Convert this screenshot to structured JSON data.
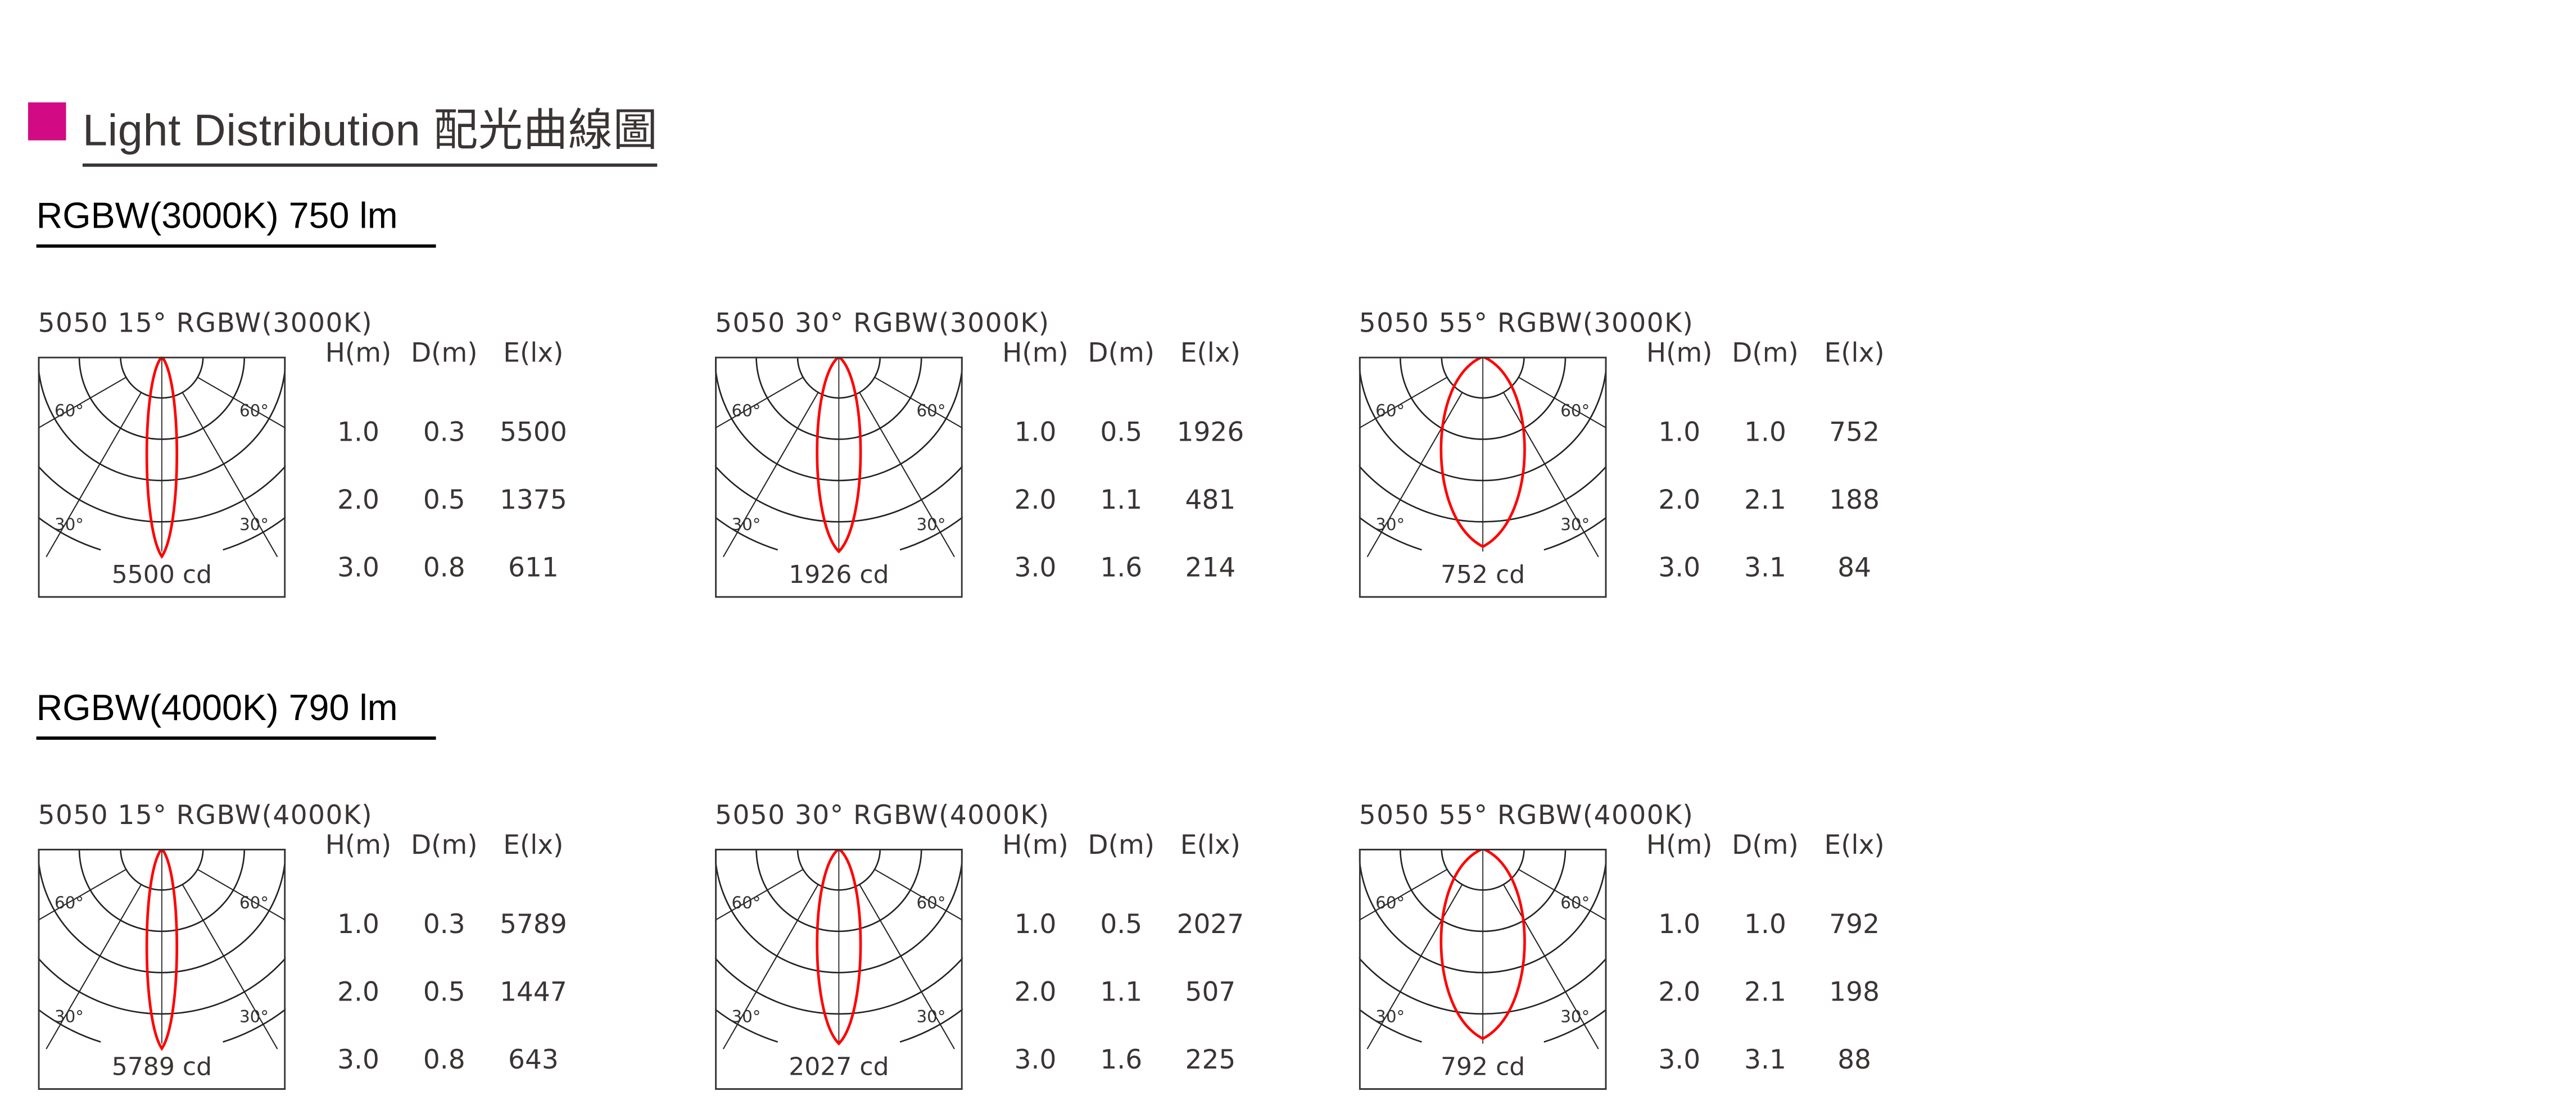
{
  "header": {
    "title": "Light Distribution  配光曲線圖",
    "accent_color": "#d20b84"
  },
  "sections": [
    {
      "title": "RGBW(3000K) 750 lm",
      "diagrams": [
        {
          "title": "5050  15°  RGBW(3000K)",
          "beam": 15,
          "peak": "5500 cd",
          "headers": [
            "H(m)",
            "D(m)",
            "E(lx)"
          ],
          "rows": [
            [
              "1.0",
              "0.3",
              "5500"
            ],
            [
              "2.0",
              "0.5",
              "1375"
            ],
            [
              "3.0",
              "0.8",
              "611"
            ]
          ]
        },
        {
          "title": "5050  30°  RGBW(3000K)",
          "beam": 30,
          "peak": "1926 cd",
          "headers": [
            "H(m)",
            "D(m)",
            "E(lx)"
          ],
          "rows": [
            [
              "1.0",
              "0.5",
              "1926"
            ],
            [
              "2.0",
              "1.1",
              "481"
            ],
            [
              "3.0",
              "1.6",
              "214"
            ]
          ]
        },
        {
          "title": "5050  55°  RGBW(3000K)",
          "beam": 55,
          "peak": "752 cd",
          "headers": [
            "H(m)",
            "D(m)",
            "E(lx)"
          ],
          "rows": [
            [
              "1.0",
              "1.0",
              "752"
            ],
            [
              "2.0",
              "2.1",
              "188"
            ],
            [
              "3.0",
              "3.1",
              "84"
            ]
          ]
        }
      ]
    },
    {
      "title": "RGBW(4000K) 790 lm",
      "diagrams": [
        {
          "title": "5050  15°  RGBW(4000K)",
          "beam": 15,
          "peak": "5789 cd",
          "headers": [
            "H(m)",
            "D(m)",
            "E(lx)"
          ],
          "rows": [
            [
              "1.0",
              "0.3",
              "5789"
            ],
            [
              "2.0",
              "0.5",
              "1447"
            ],
            [
              "3.0",
              "0.8",
              "643"
            ]
          ]
        },
        {
          "title": "5050  30°  RGBW(4000K)",
          "beam": 30,
          "peak": "2027 cd",
          "headers": [
            "H(m)",
            "D(m)",
            "E(lx)"
          ],
          "rows": [
            [
              "1.0",
              "0.5",
              "2027"
            ],
            [
              "2.0",
              "1.1",
              "507"
            ],
            [
              "3.0",
              "1.6",
              "225"
            ]
          ]
        },
        {
          "title": "5050  55°  RGBW(4000K)",
          "beam": 55,
          "peak": "792 cd",
          "headers": [
            "H(m)",
            "D(m)",
            "E(lx)"
          ],
          "rows": [
            [
              "1.0",
              "1.0",
              "792"
            ],
            [
              "2.0",
              "2.1",
              "198"
            ],
            [
              "3.0",
              "3.1",
              "88"
            ]
          ]
        }
      ]
    }
  ],
  "angle_labels": [
    "60°",
    "30°"
  ],
  "curve_color": "#ff0000"
}
